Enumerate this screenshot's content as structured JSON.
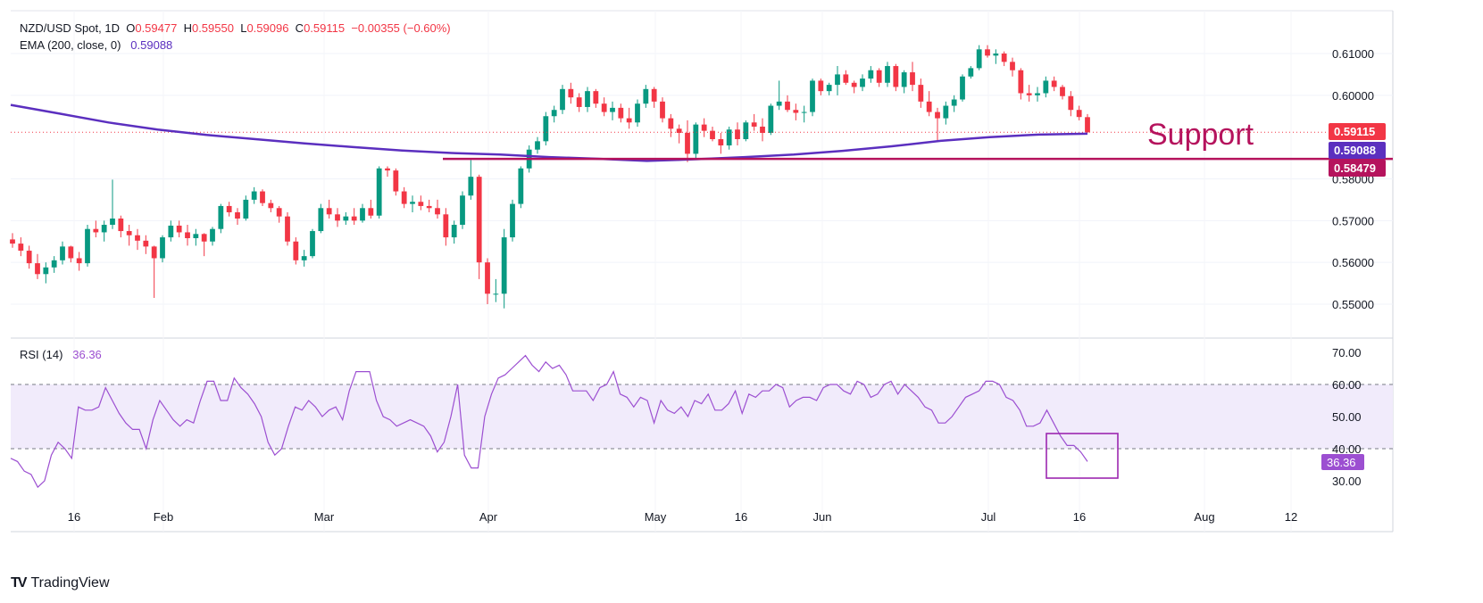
{
  "header": {
    "symbol": "NZD/USD Spot, 1D",
    "o_label": "O",
    "o_val": "0.59477",
    "h_label": "H",
    "h_val": "0.59550",
    "l_label": "L",
    "l_val": "0.59096",
    "c_label": "C",
    "c_val": "0.59115",
    "change": "−0.00355 (−0.60%)",
    "ema_label": "EMA (200, close, 0)",
    "ema_val": "0.59088",
    "rsi_label": "RSI (14)",
    "rsi_val": "36.36"
  },
  "annotation": {
    "support_text": "Support"
  },
  "badges": {
    "last_price": "0.59115",
    "ema": "0.59088",
    "support": "0.58479"
  },
  "rsi_badge": "36.36",
  "logo": {
    "text": "TradingView",
    "mark": "TV"
  },
  "colors": {
    "up": "#089981",
    "down": "#f23645",
    "ema": "#5b2fbf",
    "support": "#b5135d",
    "rsi": "#9c4fd1",
    "rsi_band": "#f1ebfb"
  },
  "chart_data": {
    "type": "candlestick",
    "price_axis": {
      "ticks": [
        "0.61000",
        "0.60000",
        "0.58000",
        "0.57000",
        "0.56000",
        "0.55000"
      ],
      "ylim": [
        0.5435,
        0.6155
      ]
    },
    "rsi_axis": {
      "ticks": [
        "70.00",
        "60.00",
        "50.00",
        "40.00",
        "30.00"
      ],
      "ylim": [
        25,
        72
      ],
      "band": [
        40,
        60
      ]
    },
    "x_labels": [
      "16",
      "Feb",
      "Mar",
      "Apr",
      "May",
      "16",
      "Jun",
      "Jul",
      "16",
      "Aug",
      "12"
    ],
    "support_level": 0.58479,
    "ema_200": [
      0.5977,
      0.5956,
      0.5935,
      0.5918,
      0.5905,
      0.5895,
      0.5885,
      0.5876,
      0.5868,
      0.5862,
      0.5858,
      0.5852,
      0.5848,
      0.5843,
      0.5847,
      0.5852,
      0.5858,
      0.5867,
      0.5878,
      0.5891,
      0.59,
      0.5906,
      0.5908
    ],
    "candles": [
      [
        0.5655,
        0.567,
        0.5635,
        0.5645
      ],
      [
        0.5645,
        0.566,
        0.5615,
        0.5628
      ],
      [
        0.5628,
        0.564,
        0.5585,
        0.5598
      ],
      [
        0.5598,
        0.562,
        0.556,
        0.5572
      ],
      [
        0.5572,
        0.56,
        0.555,
        0.5588
      ],
      [
        0.5588,
        0.5615,
        0.5575,
        0.5605
      ],
      [
        0.5605,
        0.565,
        0.5595,
        0.5638
      ],
      [
        0.5638,
        0.564,
        0.56,
        0.561
      ],
      [
        0.561,
        0.5625,
        0.558,
        0.5598
      ],
      [
        0.5598,
        0.569,
        0.559,
        0.568
      ],
      [
        0.568,
        0.57,
        0.566,
        0.5672
      ],
      [
        0.5672,
        0.57,
        0.565,
        0.569
      ],
      [
        0.569,
        0.5798,
        0.568,
        0.5705
      ],
      [
        0.5705,
        0.5712,
        0.566,
        0.5675
      ],
      [
        0.5675,
        0.569,
        0.564,
        0.5665
      ],
      [
        0.5665,
        0.568,
        0.563,
        0.5652
      ],
      [
        0.5652,
        0.5665,
        0.562,
        0.5638
      ],
      [
        0.5638,
        0.564,
        0.5515,
        0.561
      ],
      [
        0.561,
        0.5665,
        0.56,
        0.566
      ],
      [
        0.566,
        0.57,
        0.565,
        0.5688
      ],
      [
        0.5688,
        0.57,
        0.566,
        0.5672
      ],
      [
        0.5672,
        0.569,
        0.564,
        0.5658
      ],
      [
        0.5658,
        0.568,
        0.564,
        0.5668
      ],
      [
        0.5668,
        0.567,
        0.5615,
        0.565
      ],
      [
        0.565,
        0.5685,
        0.564,
        0.568
      ],
      [
        0.568,
        0.574,
        0.567,
        0.5735
      ],
      [
        0.5735,
        0.5745,
        0.571,
        0.572
      ],
      [
        0.572,
        0.573,
        0.569,
        0.5705
      ],
      [
        0.5705,
        0.576,
        0.57,
        0.575
      ],
      [
        0.575,
        0.578,
        0.574,
        0.577
      ],
      [
        0.577,
        0.5775,
        0.5735,
        0.5742
      ],
      [
        0.5742,
        0.575,
        0.572,
        0.573
      ],
      [
        0.573,
        0.5735,
        0.5695,
        0.571
      ],
      [
        0.571,
        0.572,
        0.564,
        0.565
      ],
      [
        0.565,
        0.566,
        0.5595,
        0.5605
      ],
      [
        0.5605,
        0.563,
        0.559,
        0.5615
      ],
      [
        0.5615,
        0.568,
        0.561,
        0.5675
      ],
      [
        0.5675,
        0.574,
        0.567,
        0.573
      ],
      [
        0.573,
        0.575,
        0.5705,
        0.5715
      ],
      [
        0.5715,
        0.573,
        0.5685,
        0.57
      ],
      [
        0.57,
        0.572,
        0.569,
        0.571
      ],
      [
        0.571,
        0.573,
        0.569,
        0.57
      ],
      [
        0.57,
        0.574,
        0.5695,
        0.573
      ],
      [
        0.573,
        0.575,
        0.5705,
        0.5712
      ],
      [
        0.5712,
        0.583,
        0.5705,
        0.5825
      ],
      [
        0.5825,
        0.583,
        0.5805,
        0.582
      ],
      [
        0.582,
        0.5825,
        0.576,
        0.577
      ],
      [
        0.577,
        0.578,
        0.573,
        0.574
      ],
      [
        0.574,
        0.576,
        0.572,
        0.5745
      ],
      [
        0.5745,
        0.576,
        0.5725,
        0.5735
      ],
      [
        0.5735,
        0.575,
        0.572,
        0.573
      ],
      [
        0.573,
        0.575,
        0.5705,
        0.5715
      ],
      [
        0.5715,
        0.573,
        0.564,
        0.566
      ],
      [
        0.566,
        0.57,
        0.5645,
        0.569
      ],
      [
        0.569,
        0.577,
        0.568,
        0.576
      ],
      [
        0.576,
        0.5845,
        0.575,
        0.5805
      ],
      [
        0.5805,
        0.581,
        0.556,
        0.56
      ],
      [
        0.56,
        0.561,
        0.55,
        0.5525
      ],
      [
        0.5525,
        0.556,
        0.5505,
        0.5525
      ],
      [
        0.5525,
        0.568,
        0.549,
        0.566
      ],
      [
        0.566,
        0.575,
        0.565,
        0.574
      ],
      [
        0.574,
        0.583,
        0.573,
        0.5825
      ],
      [
        0.5825,
        0.588,
        0.5815,
        0.587
      ],
      [
        0.587,
        0.59,
        0.586,
        0.589
      ],
      [
        0.589,
        0.596,
        0.588,
        0.595
      ],
      [
        0.595,
        0.5975,
        0.5935,
        0.5965
      ],
      [
        0.5965,
        0.6025,
        0.5955,
        0.6015
      ],
      [
        0.6015,
        0.603,
        0.598,
        0.5995
      ],
      [
        0.5995,
        0.6005,
        0.596,
        0.5972
      ],
      [
        0.5972,
        0.602,
        0.596,
        0.601
      ],
      [
        0.601,
        0.6015,
        0.597,
        0.598
      ],
      [
        0.598,
        0.5995,
        0.595,
        0.596
      ],
      [
        0.596,
        0.5985,
        0.594,
        0.597
      ],
      [
        0.597,
        0.598,
        0.5935,
        0.5945
      ],
      [
        0.5945,
        0.597,
        0.592,
        0.5935
      ],
      [
        0.5935,
        0.599,
        0.5925,
        0.598
      ],
      [
        0.598,
        0.6025,
        0.597,
        0.6015
      ],
      [
        0.6015,
        0.602,
        0.597,
        0.5985
      ],
      [
        0.5985,
        0.5995,
        0.5935,
        0.5945
      ],
      [
        0.5945,
        0.5955,
        0.59,
        0.592
      ],
      [
        0.592,
        0.593,
        0.5885,
        0.591
      ],
      [
        0.591,
        0.594,
        0.584,
        0.586
      ],
      [
        0.586,
        0.5935,
        0.585,
        0.593
      ],
      [
        0.593,
        0.5945,
        0.59,
        0.5915
      ],
      [
        0.5915,
        0.5925,
        0.589,
        0.5895
      ],
      [
        0.5895,
        0.591,
        0.586,
        0.588
      ],
      [
        0.588,
        0.5925,
        0.587,
        0.5918
      ],
      [
        0.5918,
        0.5935,
        0.588,
        0.5895
      ],
      [
        0.5895,
        0.594,
        0.589,
        0.5935
      ],
      [
        0.5935,
        0.5955,
        0.5915,
        0.5925
      ],
      [
        0.5925,
        0.5945,
        0.589,
        0.591
      ],
      [
        0.591,
        0.598,
        0.5905,
        0.5975
      ],
      [
        0.5975,
        0.6035,
        0.5965,
        0.5985
      ],
      [
        0.5985,
        0.6,
        0.596,
        0.5965
      ],
      [
        0.5965,
        0.598,
        0.594,
        0.5958
      ],
      [
        0.5958,
        0.5975,
        0.5935,
        0.596
      ],
      [
        0.596,
        0.604,
        0.595,
        0.6035
      ],
      [
        0.6035,
        0.604,
        0.6,
        0.601
      ],
      [
        0.601,
        0.603,
        0.6,
        0.6025
      ],
      [
        0.6025,
        0.607,
        0.6,
        0.605
      ],
      [
        0.605,
        0.606,
        0.6025,
        0.603
      ],
      [
        0.603,
        0.6035,
        0.6005,
        0.602
      ],
      [
        0.602,
        0.605,
        0.601,
        0.604
      ],
      [
        0.604,
        0.607,
        0.603,
        0.606
      ],
      [
        0.606,
        0.6065,
        0.602,
        0.603
      ],
      [
        0.603,
        0.608,
        0.602,
        0.607
      ],
      [
        0.607,
        0.6075,
        0.601,
        0.602
      ],
      [
        0.602,
        0.606,
        0.6005,
        0.6055
      ],
      [
        0.6055,
        0.608,
        0.601,
        0.6025
      ],
      [
        0.6025,
        0.604,
        0.597,
        0.5985
      ],
      [
        0.5985,
        0.601,
        0.595,
        0.596
      ],
      [
        0.596,
        0.597,
        0.589,
        0.5945
      ],
      [
        0.5945,
        0.5985,
        0.593,
        0.5975
      ],
      [
        0.5975,
        0.6,
        0.596,
        0.599
      ],
      [
        0.599,
        0.605,
        0.5985,
        0.6045
      ],
      [
        0.6045,
        0.607,
        0.604,
        0.6065
      ],
      [
        0.6065,
        0.612,
        0.606,
        0.611
      ],
      [
        0.611,
        0.612,
        0.609,
        0.6095
      ],
      [
        0.6095,
        0.611,
        0.6075,
        0.61
      ],
      [
        0.61,
        0.6105,
        0.607,
        0.608
      ],
      [
        0.608,
        0.609,
        0.6045,
        0.606
      ],
      [
        0.606,
        0.6065,
        0.599,
        0.6005
      ],
      [
        0.6005,
        0.6025,
        0.5985,
        0.6
      ],
      [
        0.6,
        0.602,
        0.5985,
        0.6005
      ],
      [
        0.6005,
        0.6045,
        0.5995,
        0.6035
      ],
      [
        0.6035,
        0.6045,
        0.601,
        0.602
      ],
      [
        0.602,
        0.6025,
        0.599,
        0.5998
      ],
      [
        0.5998,
        0.601,
        0.595,
        0.5965
      ],
      [
        0.5965,
        0.5975,
        0.594,
        0.5948
      ],
      [
        0.59477,
        0.5955,
        0.59096,
        0.59115
      ]
    ],
    "rsi": [
      37,
      36,
      33,
      32,
      28,
      30,
      38,
      42,
      40,
      37,
      53,
      52,
      52,
      53,
      59,
      55,
      51,
      48,
      46,
      46,
      40,
      49,
      55,
      52,
      49,
      47,
      49,
      48,
      55,
      61,
      61,
      55,
      55,
      62,
      59,
      57,
      54,
      50,
      42,
      38,
      40,
      47,
      53,
      52,
      55,
      53,
      50,
      52,
      53,
      49,
      58,
      64,
      64,
      64,
      55,
      50,
      49,
      47,
      48,
      49,
      48,
      47,
      44,
      39,
      42,
      50,
      60,
      38,
      34,
      34,
      50,
      57,
      62,
      63,
      65,
      67,
      69,
      66,
      64,
      67,
      65,
      66,
      63,
      58,
      58,
      58,
      55,
      59,
      60,
      64,
      57,
      56,
      53,
      56,
      55,
      48,
      55,
      52,
      51,
      53,
      50,
      55,
      54,
      57,
      52,
      52,
      54,
      58,
      51,
      57,
      56,
      58,
      58,
      60,
      59,
      53,
      55,
      56,
      56,
      55,
      59,
      60,
      60,
      58,
      57,
      61,
      60,
      56,
      57,
      60,
      61,
      57,
      60,
      58,
      56,
      53,
      52,
      48,
      48,
      50,
      53,
      56,
      57,
      58,
      61,
      61,
      60,
      56,
      55,
      52,
      47,
      47,
      48,
      52,
      48,
      44,
      41,
      41,
      39,
      36
    ]
  }
}
